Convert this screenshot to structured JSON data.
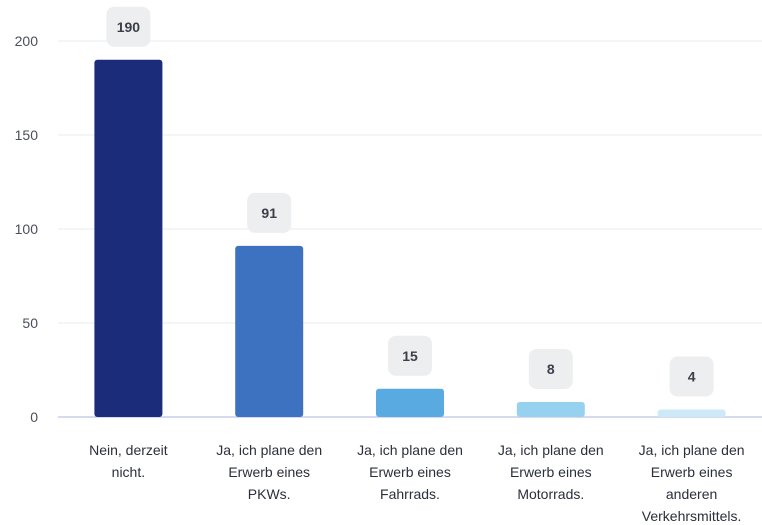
{
  "chart_data": {
    "type": "bar",
    "title": "",
    "xlabel": "",
    "ylabel": "",
    "ylim": [
      0,
      200
    ],
    "yticks": [
      0,
      50,
      100,
      150,
      200
    ],
    "grid": true,
    "legend": "none",
    "categories": [
      [
        "Nein, derzeit",
        "nicht."
      ],
      [
        "Ja, ich plane den",
        "Erwerb eines",
        "PKWs."
      ],
      [
        "Ja, ich plane den",
        "Erwerb eines",
        "Fahrrads."
      ],
      [
        "Ja, ich plane den",
        "Erwerb eines",
        "Motorrads."
      ],
      [
        "Ja, ich plane den",
        "Erwerb eines",
        "anderen",
        "Verkehrsmittels."
      ]
    ],
    "values": [
      190,
      91,
      15,
      8,
      4
    ],
    "colors": [
      "#1b2d7a",
      "#3d72c0",
      "#5aaae2",
      "#96d2ef",
      "#cde9f7"
    ]
  }
}
